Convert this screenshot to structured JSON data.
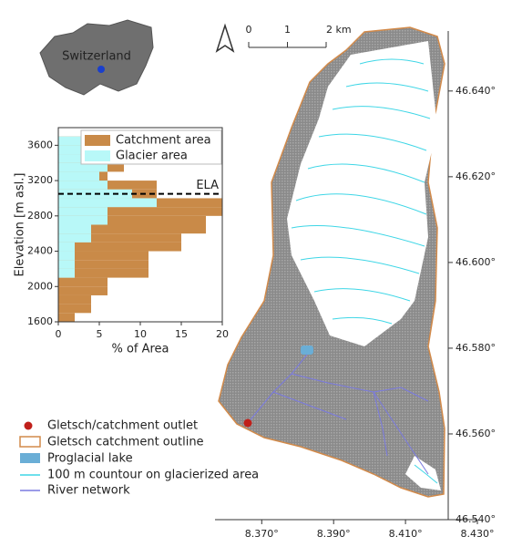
{
  "inset": {
    "label": "Switzerland"
  },
  "scale_bar": {
    "ticks": [
      0,
      1,
      {
        "value": 2,
        "label": "2 km"
      }
    ],
    "lim": [
      0,
      2
    ]
  },
  "chart_data": {
    "type": "histogram",
    "orientation": "horizontal",
    "ylabel": "Elevation [m asl.]",
    "xlabel": "% of Area",
    "bins": [
      1600,
      1700,
      1800,
      1900,
      2000,
      2100,
      2200,
      2300,
      2400,
      2500,
      2600,
      2700,
      2800,
      2900,
      3000,
      3100,
      3200,
      3300,
      3400,
      3500,
      3600,
      3700
    ],
    "series": [
      {
        "name": "Catchment area",
        "color": "#c98a48",
        "values": [
          2,
          4,
          4,
          6,
          6,
          11,
          11,
          11,
          15,
          15,
          18,
          18,
          20,
          20,
          12,
          12,
          6,
          8,
          6,
          4,
          3
        ]
      },
      {
        "name": "Glacier area",
        "color": "#b8f8f8",
        "values": [
          0,
          0,
          0,
          0,
          0,
          2,
          2,
          2,
          2,
          4,
          4,
          6,
          6,
          12,
          9,
          6,
          5,
          6,
          6,
          3,
          3
        ]
      }
    ],
    "xlim": [
      0,
      20
    ],
    "xticks": [
      0,
      5,
      10,
      15,
      20
    ],
    "ylim": [
      1600,
      3800
    ],
    "yticks": [
      1600,
      2000,
      2400,
      2800,
      3200,
      3600
    ],
    "reference_line": {
      "value": 3050,
      "label": "ELA"
    }
  },
  "map": {
    "xlim": [
      8.357,
      8.43
    ],
    "ylim": [
      46.54,
      46.654
    ],
    "xticks": [
      {
        "value": 8.37,
        "label": "8.370°"
      },
      {
        "value": 8.39,
        "label": "8.390°"
      },
      {
        "value": 8.41,
        "label": "8.410°"
      },
      {
        "value": 8.43,
        "label": "8.430°"
      }
    ],
    "yticks": [
      {
        "value": 46.54,
        "label": "46.540°"
      },
      {
        "value": 46.56,
        "label": "46.560°"
      },
      {
        "value": 46.58,
        "label": "46.580°"
      },
      {
        "value": 46.6,
        "label": "46.600°"
      },
      {
        "value": 46.62,
        "label": "46.620°"
      },
      {
        "value": 46.64,
        "label": "46.640°"
      }
    ]
  },
  "legend": [
    "Gletsch/catchment outlet",
    "Gletsch catchment outline",
    "Proglacial lake",
    "100 m countour on glacierized area",
    "River network"
  ]
}
